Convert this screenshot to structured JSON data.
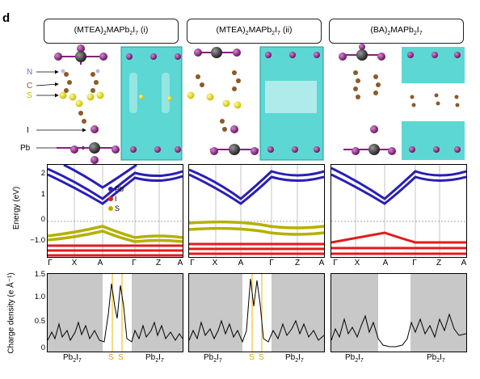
{
  "panel_letter": "d",
  "titles": [
    {
      "main": "(MTEA)",
      "s1": "2",
      "mid": "MAPb",
      "s2": "2",
      "mid2": "I",
      "s3": "7",
      "tail": " (i)"
    },
    {
      "main": "(MTEA)",
      "s1": "2",
      "mid": "MAPb",
      "s2": "2",
      "mid2": "I",
      "s3": "7",
      "tail": " (ii)"
    },
    {
      "main": "(BA)",
      "s1": "2",
      "mid": "MAPb",
      "s2": "2",
      "mid2": "I",
      "s3": "7",
      "tail": ""
    }
  ],
  "atom_labels": {
    "N": "N",
    "C": "C",
    "S": "S",
    "I": "I",
    "Pb": "Pb"
  },
  "band": {
    "ylabel": "Energy (eV)",
    "yticks": [
      "2",
      "1",
      "0",
      "−1.0"
    ],
    "legend": [
      {
        "label": "Pb",
        "color": "#2a1fb5"
      },
      {
        "label": "I",
        "color": "#e31a1c"
      },
      {
        "label": "S",
        "color": "#b5b000"
      }
    ],
    "xticks_left": [
      "Γ",
      "X",
      "A",
      "Γ",
      "Z",
      "A"
    ],
    "xticks_mid": [
      "Γ",
      "X",
      "A",
      "Γ",
      "Z",
      "A"
    ],
    "xticks_right": [
      "Γ",
      "X",
      "A",
      "Γ",
      "Z",
      "A"
    ]
  },
  "charge": {
    "ylabel": "Charge density (e Å⁻¹)",
    "yticks": [
      "1.5",
      "1.0",
      "0.5",
      "0"
    ]
  },
  "bottom_labels": {
    "pb": "Pb",
    "pb_sub1": "2",
    "i": "I",
    "i_sub": "7",
    "s": "S"
  },
  "colors": {
    "pb": "#2a1fb5",
    "iodine": "#e31a1c",
    "sulfur": "#b5b000",
    "iso": "#3fd0cc",
    "shade": "#c8c8c8",
    "s_line": "#f0b400",
    "atom_purple": "#8a1c7f",
    "atom_brown": "#8b5a2b",
    "atom_yellow": "#e9e33a",
    "atom_gray": "#444"
  }
}
